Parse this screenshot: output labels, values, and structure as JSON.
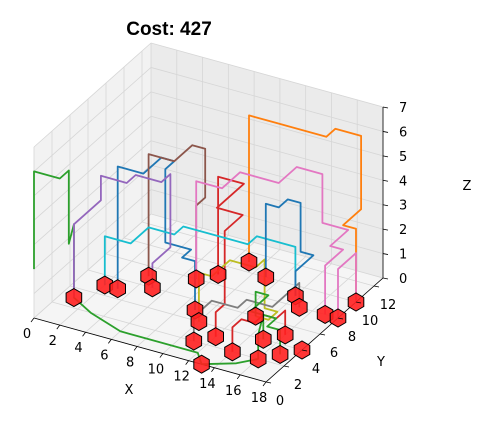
{
  "chart_data": {
    "type": "line3d",
    "title": "Cost: 427",
    "xlabel": "X",
    "ylabel": "Y",
    "zlabel": "Z",
    "xlim": [
      0,
      18
    ],
    "ylim": [
      0,
      13
    ],
    "zlim": [
      0,
      7
    ],
    "xticks": [
      0,
      2,
      4,
      6,
      8,
      10,
      12,
      14,
      16,
      18
    ],
    "yticks": [
      0,
      2,
      4,
      6,
      8,
      10,
      12
    ],
    "zticks": [
      0,
      1,
      2,
      3,
      4,
      5,
      6,
      7
    ],
    "grid": true,
    "markers": [
      {
        "x": 1,
        "y": 3,
        "z": 0
      },
      {
        "x": 3,
        "y": 5,
        "z": 0
      },
      {
        "x": 5,
        "y": 6,
        "z": 0
      },
      {
        "x": 4,
        "y": 7,
        "z": 0
      },
      {
        "x": 7,
        "y": 8,
        "z": 0
      },
      {
        "x": 8,
        "y": 9,
        "z": 0
      },
      {
        "x": 9,
        "y": 5,
        "z": 0
      },
      {
        "x": 10,
        "y": 4,
        "z": 0
      },
      {
        "x": 11,
        "y": 2,
        "z": 0
      },
      {
        "x": 12,
        "y": 3,
        "z": 0
      },
      {
        "x": 14,
        "y": 2,
        "z": 0
      },
      {
        "x": 13,
        "y": 0,
        "z": 0
      },
      {
        "x": 13,
        "y": 6,
        "z": 0
      },
      {
        "x": 15,
        "y": 4,
        "z": 0
      },
      {
        "x": 16,
        "y": 2,
        "z": 0
      },
      {
        "x": 16,
        "y": 5,
        "z": 0
      },
      {
        "x": 17,
        "y": 3,
        "z": 0
      },
      {
        "x": 18,
        "y": 4,
        "z": 0
      },
      {
        "x": 17,
        "y": 8,
        "z": 0
      },
      {
        "x": 18,
        "y": 8,
        "z": 0
      },
      {
        "x": 18,
        "y": 10,
        "z": 0
      },
      {
        "x": 14,
        "y": 9,
        "z": 0
      },
      {
        "x": 11,
        "y": 10,
        "z": 0
      },
      {
        "x": 9,
        "y": 11,
        "z": 0
      },
      {
        "x": 2,
        "y": 5,
        "z": 0
      },
      {
        "x": 15,
        "y": 8,
        "z": 0
      }
    ],
    "series": [
      {
        "color": "#2ca02c",
        "points": [
          [
            0,
            0,
            2
          ],
          [
            0,
            0,
            6
          ],
          [
            2,
            0,
            6
          ],
          [
            2,
            1,
            6
          ],
          [
            2,
            1,
            3
          ],
          [
            1,
            3,
            3
          ],
          [
            1,
            3,
            0
          ],
          [
            3,
            2,
            0
          ],
          [
            6,
            1,
            0
          ],
          [
            9,
            1,
            0
          ],
          [
            12,
            1,
            0
          ],
          [
            13,
            0,
            0
          ],
          [
            15,
            1,
            0
          ],
          [
            16,
            2,
            0
          ],
          [
            16,
            2,
            1
          ],
          [
            15,
            4,
            1
          ],
          [
            15,
            4,
            0
          ]
        ]
      },
      {
        "color": "#d62728",
        "points": [
          [
            8,
            9,
            0
          ],
          [
            8,
            9,
            4
          ],
          [
            10,
            9,
            4
          ],
          [
            10,
            8,
            4
          ],
          [
            10,
            6,
            4
          ],
          [
            12,
            6,
            4
          ],
          [
            12,
            4,
            4
          ],
          [
            12,
            4,
            1
          ],
          [
            12,
            3,
            1
          ],
          [
            12,
            3,
            0
          ]
        ]
      },
      {
        "color": "#1f77b4",
        "points": [
          [
            3,
            5,
            0
          ],
          [
            3,
            5,
            5
          ],
          [
            5,
            5,
            5
          ],
          [
            5,
            7,
            5
          ],
          [
            6,
            7,
            5
          ],
          [
            6,
            6,
            5
          ],
          [
            6,
            6,
            2
          ],
          [
            8,
            6,
            2
          ],
          [
            8,
            5,
            2
          ],
          [
            9,
            5,
            2
          ],
          [
            9,
            5,
            0
          ]
        ]
      },
      {
        "color": "#ff7f0e",
        "points": [
          [
            9,
            11,
            0
          ],
          [
            9,
            11,
            6
          ],
          [
            11,
            11,
            6
          ],
          [
            15,
            11,
            6
          ],
          [
            15,
            12,
            6
          ],
          [
            17,
            12,
            6
          ],
          [
            17,
            12,
            3
          ],
          [
            17,
            10,
            3
          ],
          [
            18,
            10,
            3
          ],
          [
            18,
            10,
            0
          ]
        ]
      },
      {
        "color": "#8c564b",
        "points": [
          [
            4,
            7,
            0
          ],
          [
            4,
            7,
            5
          ],
          [
            6,
            7,
            5
          ],
          [
            6,
            9,
            5
          ],
          [
            7,
            9,
            5
          ],
          [
            7,
            9,
            3
          ],
          [
            7,
            8,
            3
          ],
          [
            7,
            8,
            0
          ]
        ]
      },
      {
        "color": "#e377c2",
        "points": [
          [
            7,
            8,
            0
          ],
          [
            7,
            8,
            4
          ],
          [
            9,
            8,
            4
          ],
          [
            9,
            10,
            4
          ],
          [
            12,
            10,
            4
          ],
          [
            12,
            12,
            4
          ],
          [
            14,
            12,
            4
          ],
          [
            14,
            12,
            2
          ],
          [
            16,
            12,
            2
          ],
          [
            16,
            10,
            2
          ],
          [
            17,
            10,
            2
          ],
          [
            17,
            8,
            2
          ],
          [
            17,
            8,
            0
          ]
        ]
      },
      {
        "color": "#bcbd22",
        "points": [
          [
            10,
            4,
            0
          ],
          [
            10,
            4,
            2
          ],
          [
            11,
            4,
            2
          ],
          [
            11,
            6,
            2
          ],
          [
            13,
            6,
            2
          ],
          [
            13,
            7,
            2
          ],
          [
            13,
            7,
            0
          ],
          [
            14,
            7,
            0
          ],
          [
            14,
            6,
            0
          ],
          [
            13,
            6,
            0
          ]
        ]
      },
      {
        "color": "#17becf",
        "points": [
          [
            2,
            5,
            0
          ],
          [
            2,
            5,
            2
          ],
          [
            4,
            5,
            2
          ],
          [
            4,
            7,
            2
          ],
          [
            6,
            7,
            2
          ],
          [
            6,
            8,
            2
          ],
          [
            9,
            8,
            2
          ],
          [
            11,
            8,
            2
          ],
          [
            11,
            9,
            2
          ],
          [
            14,
            9,
            2
          ],
          [
            14,
            9,
            0
          ]
        ]
      },
      {
        "color": "#9467bd",
        "points": [
          [
            1,
            3,
            0
          ],
          [
            1,
            3,
            3
          ],
          [
            1,
            6,
            3
          ],
          [
            1,
            6,
            4
          ],
          [
            3,
            6,
            4
          ],
          [
            3,
            7,
            4
          ],
          [
            5,
            7,
            4
          ],
          [
            5,
            8,
            4
          ],
          [
            5,
            8,
            1
          ],
          [
            5,
            6,
            1
          ],
          [
            5,
            6,
            0
          ]
        ]
      },
      {
        "color": "#7f7f7f",
        "points": [
          [
            11,
            2,
            0
          ],
          [
            11,
            2,
            1
          ],
          [
            11,
            4,
            1
          ],
          [
            13,
            4,
            1
          ],
          [
            13,
            5,
            1
          ],
          [
            15,
            5,
            1
          ],
          [
            15,
            8,
            1
          ],
          [
            15,
            8,
            0
          ]
        ]
      },
      {
        "color": "#d62728",
        "points": [
          [
            14,
            2,
            0
          ],
          [
            14,
            2,
            1
          ],
          [
            14,
            3,
            1
          ],
          [
            15,
            3,
            1
          ],
          [
            15,
            4,
            1
          ],
          [
            16,
            4,
            1
          ],
          [
            16,
            5,
            1
          ],
          [
            16,
            5,
            0
          ]
        ]
      },
      {
        "color": "#1f77b4",
        "points": [
          [
            11,
            10,
            0
          ],
          [
            11,
            10,
            3
          ],
          [
            12,
            10,
            3
          ],
          [
            12,
            11,
            3
          ],
          [
            13,
            11,
            3
          ],
          [
            13,
            11,
            1
          ],
          [
            14,
            11,
            1
          ],
          [
            14,
            10,
            1
          ],
          [
            14,
            9,
            1
          ],
          [
            14,
            9,
            0
          ]
        ]
      },
      {
        "color": "#2ca02c",
        "points": [
          [
            13,
            6,
            0
          ],
          [
            13,
            6,
            1
          ],
          [
            14,
            6,
            1
          ],
          [
            14,
            5,
            1
          ],
          [
            14,
            4,
            1
          ],
          [
            15,
            4,
            1
          ],
          [
            16,
            4,
            1
          ],
          [
            16,
            3,
            1
          ],
          [
            17,
            3,
            1
          ],
          [
            17,
            3,
            0
          ]
        ]
      },
      {
        "color": "#e377c2",
        "points": [
          [
            18,
            8,
            0
          ],
          [
            18,
            8,
            2
          ],
          [
            18,
            9,
            2
          ],
          [
            18,
            10,
            2
          ],
          [
            18,
            10,
            0
          ]
        ]
      }
    ]
  }
}
